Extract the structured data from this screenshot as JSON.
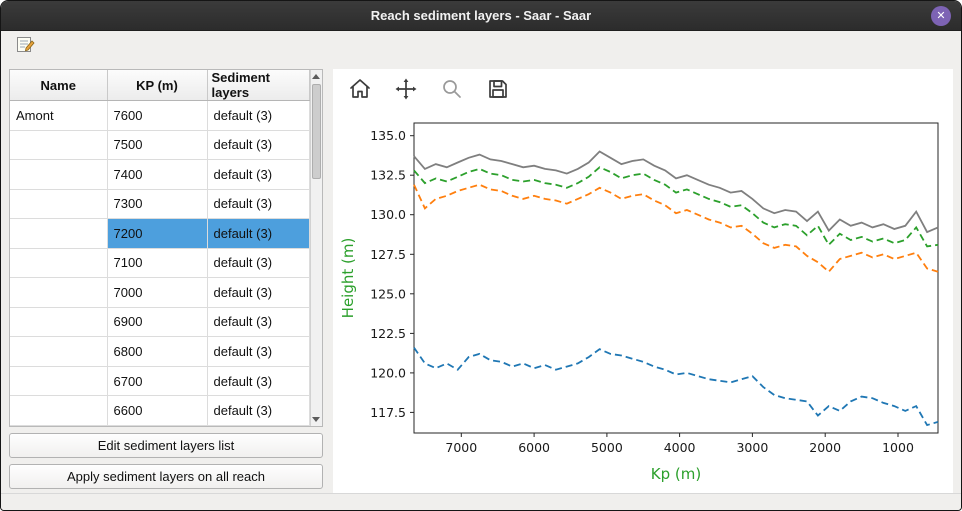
{
  "window": {
    "title": "Reach sediment layers - Saar - Saar",
    "close_icon": "close-icon"
  },
  "top_toolbar": {
    "icons": [
      "edit-note-icon"
    ]
  },
  "table": {
    "columns": [
      "Name",
      "KP (m)",
      "Sediment layers"
    ],
    "selected_index": 4,
    "rows": [
      {
        "name": "Amont",
        "kp": "7600",
        "layers": "default (3)"
      },
      {
        "name": "",
        "kp": "7500",
        "layers": "default (3)"
      },
      {
        "name": "",
        "kp": "7400",
        "layers": "default (3)"
      },
      {
        "name": "",
        "kp": "7300",
        "layers": "default (3)"
      },
      {
        "name": "",
        "kp": "7200",
        "layers": "default (3)"
      },
      {
        "name": "",
        "kp": "7100",
        "layers": "default (3)"
      },
      {
        "name": "",
        "kp": "7000",
        "layers": "default (3)"
      },
      {
        "name": "",
        "kp": "6900",
        "layers": "default (3)"
      },
      {
        "name": "",
        "kp": "6800",
        "layers": "default (3)"
      },
      {
        "name": "",
        "kp": "6700",
        "layers": "default (3)"
      },
      {
        "name": "",
        "kp": "6600",
        "layers": "default (3)"
      }
    ]
  },
  "buttons": {
    "edit": "Edit sediment layers list",
    "apply": "Apply sediment layers on all reach"
  },
  "plot_toolbar": {
    "icons": [
      "home-icon",
      "pan-icon",
      "zoom-icon",
      "save-icon"
    ]
  },
  "chart_data": {
    "type": "line",
    "title": "",
    "xlabel": "Kp (m)",
    "ylabel": "Height (m)",
    "axis_label_color": "#2ca02c",
    "x_axis_reversed": true,
    "xlim": [
      7650,
      450
    ],
    "ylim": [
      116.2,
      135.8
    ],
    "xticks": [
      7000,
      6000,
      5000,
      4000,
      3000,
      2000,
      1000
    ],
    "yticks": [
      117.5,
      120.0,
      122.5,
      125.0,
      127.5,
      130.0,
      132.5,
      135.0
    ],
    "grid": false,
    "legend": false,
    "x": [
      7650,
      7500,
      7350,
      7200,
      7050,
      6900,
      6750,
      6600,
      6450,
      6300,
      6150,
      6000,
      5850,
      5700,
      5550,
      5400,
      5250,
      5100,
      4950,
      4800,
      4650,
      4500,
      4350,
      4200,
      4050,
      3900,
      3750,
      3600,
      3450,
      3300,
      3150,
      3000,
      2850,
      2700,
      2550,
      2400,
      2250,
      2100,
      1950,
      1800,
      1650,
      1500,
      1350,
      1200,
      1050,
      900,
      750,
      600,
      450
    ],
    "series": [
      {
        "name": "top-bank-gray",
        "color": "#7f7f7f",
        "style": "solid",
        "values": [
          133.7,
          132.9,
          133.2,
          133.0,
          133.3,
          133.6,
          133.8,
          133.5,
          133.4,
          133.2,
          133.0,
          133.1,
          132.9,
          132.8,
          132.6,
          132.9,
          133.3,
          134.0,
          133.6,
          133.2,
          133.4,
          133.5,
          133.1,
          132.8,
          132.3,
          132.5,
          132.2,
          131.9,
          131.7,
          131.4,
          131.5,
          131.0,
          130.4,
          130.1,
          130.3,
          130.2,
          129.6,
          130.2,
          129.0,
          129.7,
          129.3,
          129.5,
          129.2,
          129.4,
          129.1,
          129.3,
          130.2,
          128.9,
          129.2
        ]
      },
      {
        "name": "sediment-layer-green",
        "color": "#2ca02c",
        "style": "dashed",
        "values": [
          132.8,
          132.0,
          132.3,
          132.1,
          132.4,
          132.7,
          132.9,
          132.6,
          132.5,
          132.2,
          132.1,
          132.2,
          132.0,
          131.9,
          131.7,
          132.0,
          132.4,
          133.0,
          132.7,
          132.3,
          132.5,
          132.6,
          132.2,
          131.9,
          131.4,
          131.6,
          131.3,
          131.0,
          130.8,
          130.5,
          130.6,
          130.1,
          129.5,
          129.2,
          129.4,
          129.3,
          128.7,
          129.3,
          128.1,
          128.8,
          128.4,
          128.6,
          128.3,
          128.5,
          128.2,
          128.4,
          129.2,
          128.0,
          128.1
        ]
      },
      {
        "name": "sediment-layer-orange",
        "color": "#ff7f0e",
        "style": "dashed",
        "values": [
          131.9,
          130.4,
          131.0,
          131.2,
          131.5,
          131.7,
          131.9,
          131.6,
          131.5,
          131.2,
          131.0,
          131.2,
          131.0,
          130.9,
          130.7,
          131.0,
          131.3,
          131.7,
          131.4,
          131.0,
          131.2,
          131.3,
          130.9,
          130.6,
          130.1,
          130.3,
          130.0,
          129.7,
          129.5,
          129.2,
          129.3,
          128.8,
          128.2,
          127.9,
          128.1,
          128.0,
          127.4,
          127.0,
          126.4,
          127.2,
          127.4,
          127.6,
          127.3,
          127.5,
          127.2,
          127.4,
          127.6,
          126.6,
          126.4
        ]
      },
      {
        "name": "bottom-layer-blue",
        "color": "#1f77b4",
        "style": "dashed",
        "values": [
          121.6,
          120.6,
          120.3,
          120.6,
          120.2,
          121.0,
          121.2,
          120.8,
          120.7,
          120.4,
          120.6,
          120.3,
          120.5,
          120.2,
          120.4,
          120.6,
          121.0,
          121.5,
          121.2,
          121.1,
          120.9,
          120.7,
          120.4,
          120.2,
          119.9,
          120.0,
          119.8,
          119.6,
          119.5,
          119.4,
          119.6,
          119.8,
          119.1,
          118.6,
          118.4,
          118.3,
          118.2,
          117.3,
          117.9,
          117.6,
          118.2,
          118.5,
          118.4,
          118.1,
          117.9,
          117.6,
          117.9,
          116.7,
          116.9
        ]
      }
    ]
  },
  "colors": {
    "selection": "#4d9fdd",
    "titlebar": "#2c2c2c"
  }
}
